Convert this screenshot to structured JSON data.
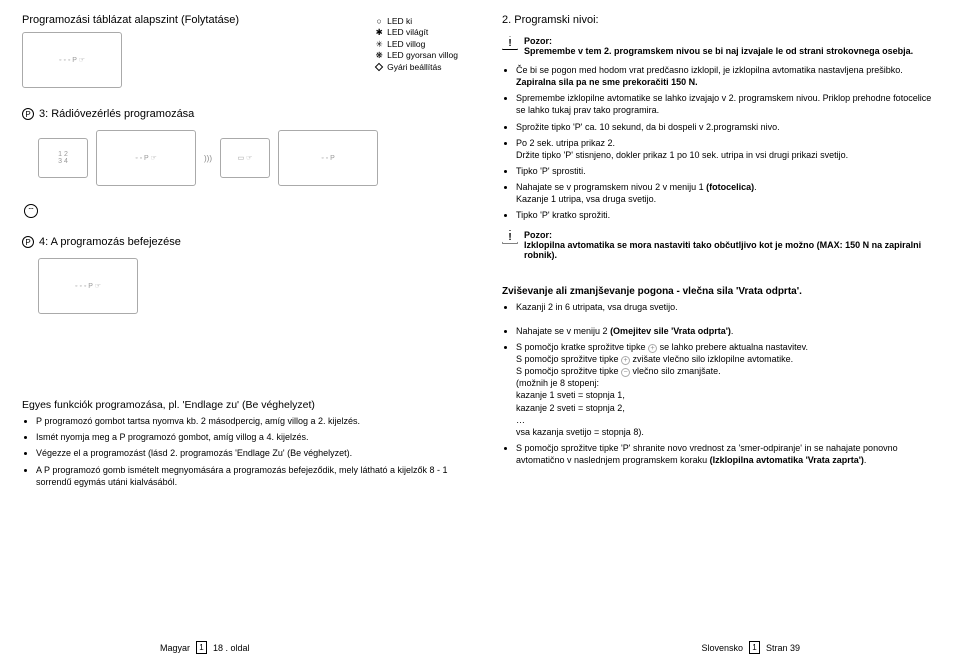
{
  "left": {
    "topTitle": "Programozási táblázat alapszint (Folytatáse)",
    "led": {
      "l1": "LED ki",
      "l2": "LED világít",
      "l3": "LED villog",
      "l4": "LED gyorsan villog",
      "l5": "Gyári beállítás"
    },
    "step3Title": "3: Rádióvezérlés programozása",
    "step4Title": "4: A programozás befejezése",
    "funcTitle": "Egyes funkciók programozása, pl. 'Endlage zu' (Be véghelyzet)",
    "funcBullets": [
      "P programozó gombot tartsa nyomva kb. 2 másodpercig, amíg villog a 2. kijelzés.",
      "Ismét nyomja meg a P programozó gombot, amíg villog a 4. kijelzés.",
      "Végezze el a programozást (lásd 2. programozás 'Endlage Zu' (Be véghelyzet).",
      "A P programozó gomb ismételt megnyomására a programozás befejeződik, mely látható a kijelzők 8 - 1 sorrendű egymás utáni kialvásából."
    ],
    "footerLang": "Magyar",
    "footerNum": "1",
    "footerPage": "18 . oldal"
  },
  "right": {
    "heading": "2. Programski nivoi:",
    "warn1a": "Pozor:",
    "warn1b": "Spremembe v tem 2. programskem nivou se bi naj izvajale le od strani strokovnega osebja.",
    "bulletsA": [
      "Če bi se pogon med hodom vrat predčasno izklopil, je izklopilna avtomatika nastavljena prešibko. <span class=\"bold\">Zapiralna sila pa ne sme prekoračiti 150 N.</span>",
      "Spremembe izklopilne avtomatike se lahko izvajajo v 2. programskem nivou. Priklop prehodne fotocelice se lahko tukaj prav tako programira.",
      "Sprožite tipko 'P' ca. 10 sekund, da bi dospeli v 2.programski nivo.",
      "Po 2 sek. utripa prikaz 2.<br>Držite tipko 'P' stisnjeno, dokler prikaz 1 po 10 sek. utripa in vsi drugi prikazi svetijo.",
      "Tipko 'P' sprostiti.",
      "Nahajate se v programskem nivou 2 v meniju 1 <span class=\"bold\">(fotocelica)</span>.<br>Kazanje 1 utripa, vsa druga svetijo.",
      "Tipko 'P' kratko sprožiti."
    ],
    "warn2a": "Pozor:",
    "warn2b": "Izklopilna avtomatika se mora nastaviti tako občutljivo kot je možno (MAX: 150 N na zapiralni robnik).",
    "subhead": "Zviševanje ali zmanjševanje pogona - vlečna sila 'Vrata odprta'.",
    "subBullet": "Kazanji 2 in 6 utripata, vsa druga svetijo.",
    "bulletsB": [
      "Nahajate se v meniju 2 <span class=\"bold\">(Omejitev sile 'Vrata odprta')</span>.",
      "S pomočjo kratke sprožitve tipke <span class=\"plusminus\">+</span> se lahko prebere aktualna nastavitev.<br>S pomočjo sprožitve tipke <span class=\"plusminus\">+</span> zvišate vlečno silo izklopilne avtomatike.<br>S pomočjo sprožitve tipke <span class=\"plusminus\">−</span> vlečno silo zmanjšate.<br>(možnih je 8 stopenj:<br>kazanje 1 sveti = stopnja 1,<br>kazanje 2 sveti = stopnja 2,<br>…<br>vsa kazanja svetijo = stopnja 8).",
      "S pomočjo sprožitve tipke 'P' shranite novo vrednost za 'smer-odpiranje' in se nahajate ponovno avtomatično v naslednjem programskem koraku <span class=\"bold\">(Izklopilna avtomatika 'Vrata zaprta')</span>."
    ],
    "footerLang": "Slovensko",
    "footerNum": "1",
    "footerPage": "Stran  39"
  }
}
